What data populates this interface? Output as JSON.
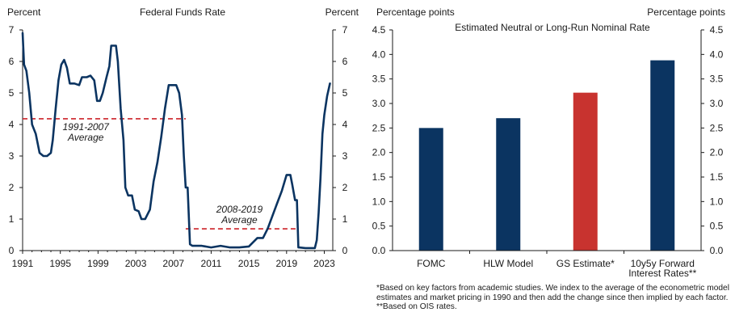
{
  "colors": {
    "navy": "#0b3461",
    "red": "#c8332f",
    "dashed_red": "#cc2229",
    "axis": "#1a1a1a"
  },
  "chart_data": [
    {
      "type": "line",
      "title": "Federal Funds Rate",
      "ylabel_left": "Percent",
      "ylabel_right": "Percent",
      "xlim": [
        1991,
        2023.9
      ],
      "ylim": [
        0,
        7
      ],
      "yticks": [
        0,
        1,
        2,
        3,
        4,
        5,
        6,
        7
      ],
      "xticks": [
        1991,
        1995,
        1999,
        2003,
        2007,
        2011,
        2015,
        2019,
        2023
      ],
      "series": [
        {
          "name": "Federal Funds Rate",
          "x": [
            1991.0,
            1991.15,
            1991.4,
            1991.7,
            1992.0,
            1992.4,
            1992.8,
            1993.2,
            1993.6,
            1994.0,
            1994.2,
            1994.5,
            1994.8,
            1995.1,
            1995.4,
            1995.7,
            1996.0,
            1996.5,
            1997.0,
            1997.3,
            1997.8,
            1998.2,
            1998.6,
            1998.9,
            1999.2,
            1999.5,
            1999.9,
            2000.2,
            2000.4,
            2000.6,
            2000.9,
            2001.1,
            2001.4,
            2001.7,
            2001.9,
            2002.2,
            2002.6,
            2002.9,
            2003.3,
            2003.6,
            2004.0,
            2004.5,
            2004.9,
            2005.3,
            2005.7,
            2006.1,
            2006.5,
            2006.9,
            2007.3,
            2007.6,
            2007.9,
            2008.1,
            2008.3,
            2008.5,
            2008.75,
            2009.0,
            2010.0,
            2011.0,
            2012.0,
            2013.0,
            2014.0,
            2015.0,
            2015.9,
            2016.5,
            2017.0,
            2017.5,
            2018.0,
            2018.5,
            2019.0,
            2019.4,
            2019.6,
            2019.9,
            2020.1,
            2020.25,
            2020.3,
            2021.0,
            2022.0,
            2022.2,
            2022.4,
            2022.6,
            2022.8,
            2023.0,
            2023.3,
            2023.6
          ],
          "values": [
            6.9,
            5.9,
            5.7,
            5.0,
            4.0,
            3.7,
            3.1,
            3.0,
            3.0,
            3.1,
            3.5,
            4.5,
            5.4,
            5.9,
            6.05,
            5.8,
            5.3,
            5.3,
            5.25,
            5.5,
            5.5,
            5.55,
            5.4,
            4.75,
            4.75,
            5.0,
            5.5,
            5.85,
            6.5,
            6.5,
            6.5,
            6.0,
            4.5,
            3.5,
            2.0,
            1.75,
            1.75,
            1.3,
            1.25,
            1.0,
            1.0,
            1.3,
            2.2,
            2.8,
            3.6,
            4.5,
            5.25,
            5.25,
            5.25,
            5.0,
            4.3,
            3.0,
            2.0,
            2.0,
            0.2,
            0.15,
            0.15,
            0.1,
            0.15,
            0.1,
            0.1,
            0.13,
            0.4,
            0.4,
            0.7,
            1.1,
            1.5,
            1.9,
            2.4,
            2.4,
            2.1,
            1.6,
            1.6,
            0.1,
            0.1,
            0.08,
            0.08,
            0.33,
            1.2,
            2.3,
            3.7,
            4.3,
            4.9,
            5.3
          ]
        }
      ],
      "reference_lines": [
        {
          "label_line1": "1991-2007",
          "label_line2": "Average",
          "value": 4.18,
          "x_start": 1991,
          "x_end": 2008.3
        },
        {
          "label_line1": "2008-2019",
          "label_line2": "Average",
          "value": 0.69,
          "x_start": 2008.3,
          "x_end": 2020.1
        }
      ]
    },
    {
      "type": "bar",
      "title": "Estimated Neutral or Long-Run Nominal Rate",
      "ylabel_left": "Percentage points",
      "ylabel_right": "Percentage points",
      "ylim": [
        0,
        4.5
      ],
      "yticks": [
        "0.0",
        "0.5",
        "1.0",
        "1.5",
        "2.0",
        "2.5",
        "3.0",
        "3.5",
        "4.0",
        "4.5"
      ],
      "categories": [
        {
          "line1": "FOMC",
          "line2": ""
        },
        {
          "line1": "HLW Model",
          "line2": ""
        },
        {
          "line1": "GS Estimate*",
          "line2": ""
        },
        {
          "line1": "10y5y Forward",
          "line2": "Interest Rates**"
        }
      ],
      "values": [
        2.5,
        2.7,
        3.22,
        3.88
      ],
      "bar_colors": [
        "#0b3461",
        "#0b3461",
        "#c8332f",
        "#0b3461"
      ]
    }
  ],
  "footnote": "*Based on key factors from academic studies. We index to the average of the econometric model estimates and market pricing in 1990 and then add the change since then implied  by each factor. **Based on OIS rates."
}
